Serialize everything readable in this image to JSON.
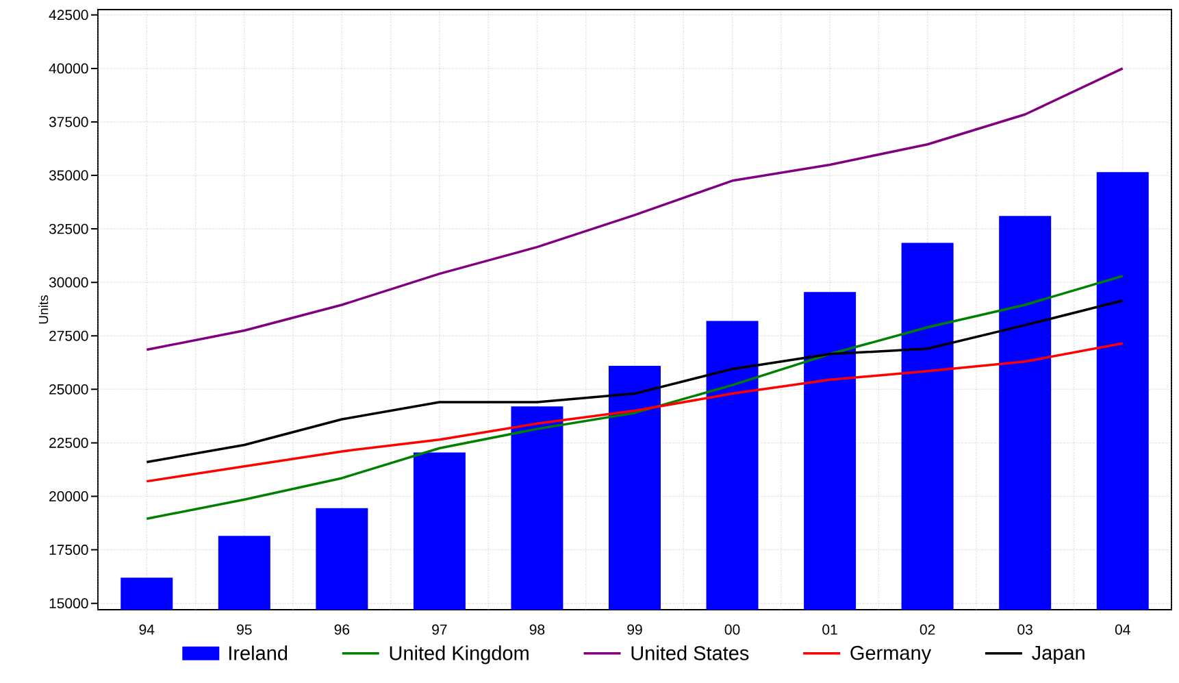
{
  "chart_data": {
    "type": "bar",
    "ylabel": "Units",
    "categories": [
      "94",
      "95",
      "96",
      "97",
      "98",
      "99",
      "00",
      "01",
      "02",
      "03",
      "04"
    ],
    "series": [
      {
        "name": "Ireland",
        "color": "#0000ff",
        "values": [
          16200,
          18150,
          19450,
          22050,
          24200,
          26100,
          28200,
          29550,
          31850,
          33100,
          35150
        ]
      },
      {
        "name": "United Kingdom",
        "type": "line",
        "color": "#008000",
        "values": [
          18950,
          19850,
          20850,
          22250,
          23150,
          23900,
          25200,
          26650,
          27900,
          28950,
          30300
        ]
      },
      {
        "name": "United States",
        "type": "line",
        "color": "#800080",
        "values": [
          26850,
          27750,
          28950,
          30400,
          31650,
          33150,
          34750,
          35500,
          36450,
          37850,
          40000
        ]
      },
      {
        "name": "Germany",
        "type": "line",
        "color": "#ff0000",
        "values": [
          20700,
          21400,
          22100,
          22650,
          23400,
          24000,
          24800,
          25450,
          25850,
          26300,
          27150
        ]
      },
      {
        "name": "Japan",
        "type": "line",
        "color": "#000000",
        "values": [
          21600,
          22400,
          23600,
          24400,
          24400,
          24800,
          25950,
          26650,
          26900,
          28000,
          29150
        ]
      }
    ],
    "ylim": [
      14700,
      42750
    ],
    "yticks": [
      15000,
      17500,
      20000,
      22500,
      25000,
      27500,
      30000,
      32500,
      35000,
      37500,
      40000,
      42500
    ],
    "grid": true,
    "legend": "bottom",
    "marker": "none",
    "line_style": "solid"
  }
}
